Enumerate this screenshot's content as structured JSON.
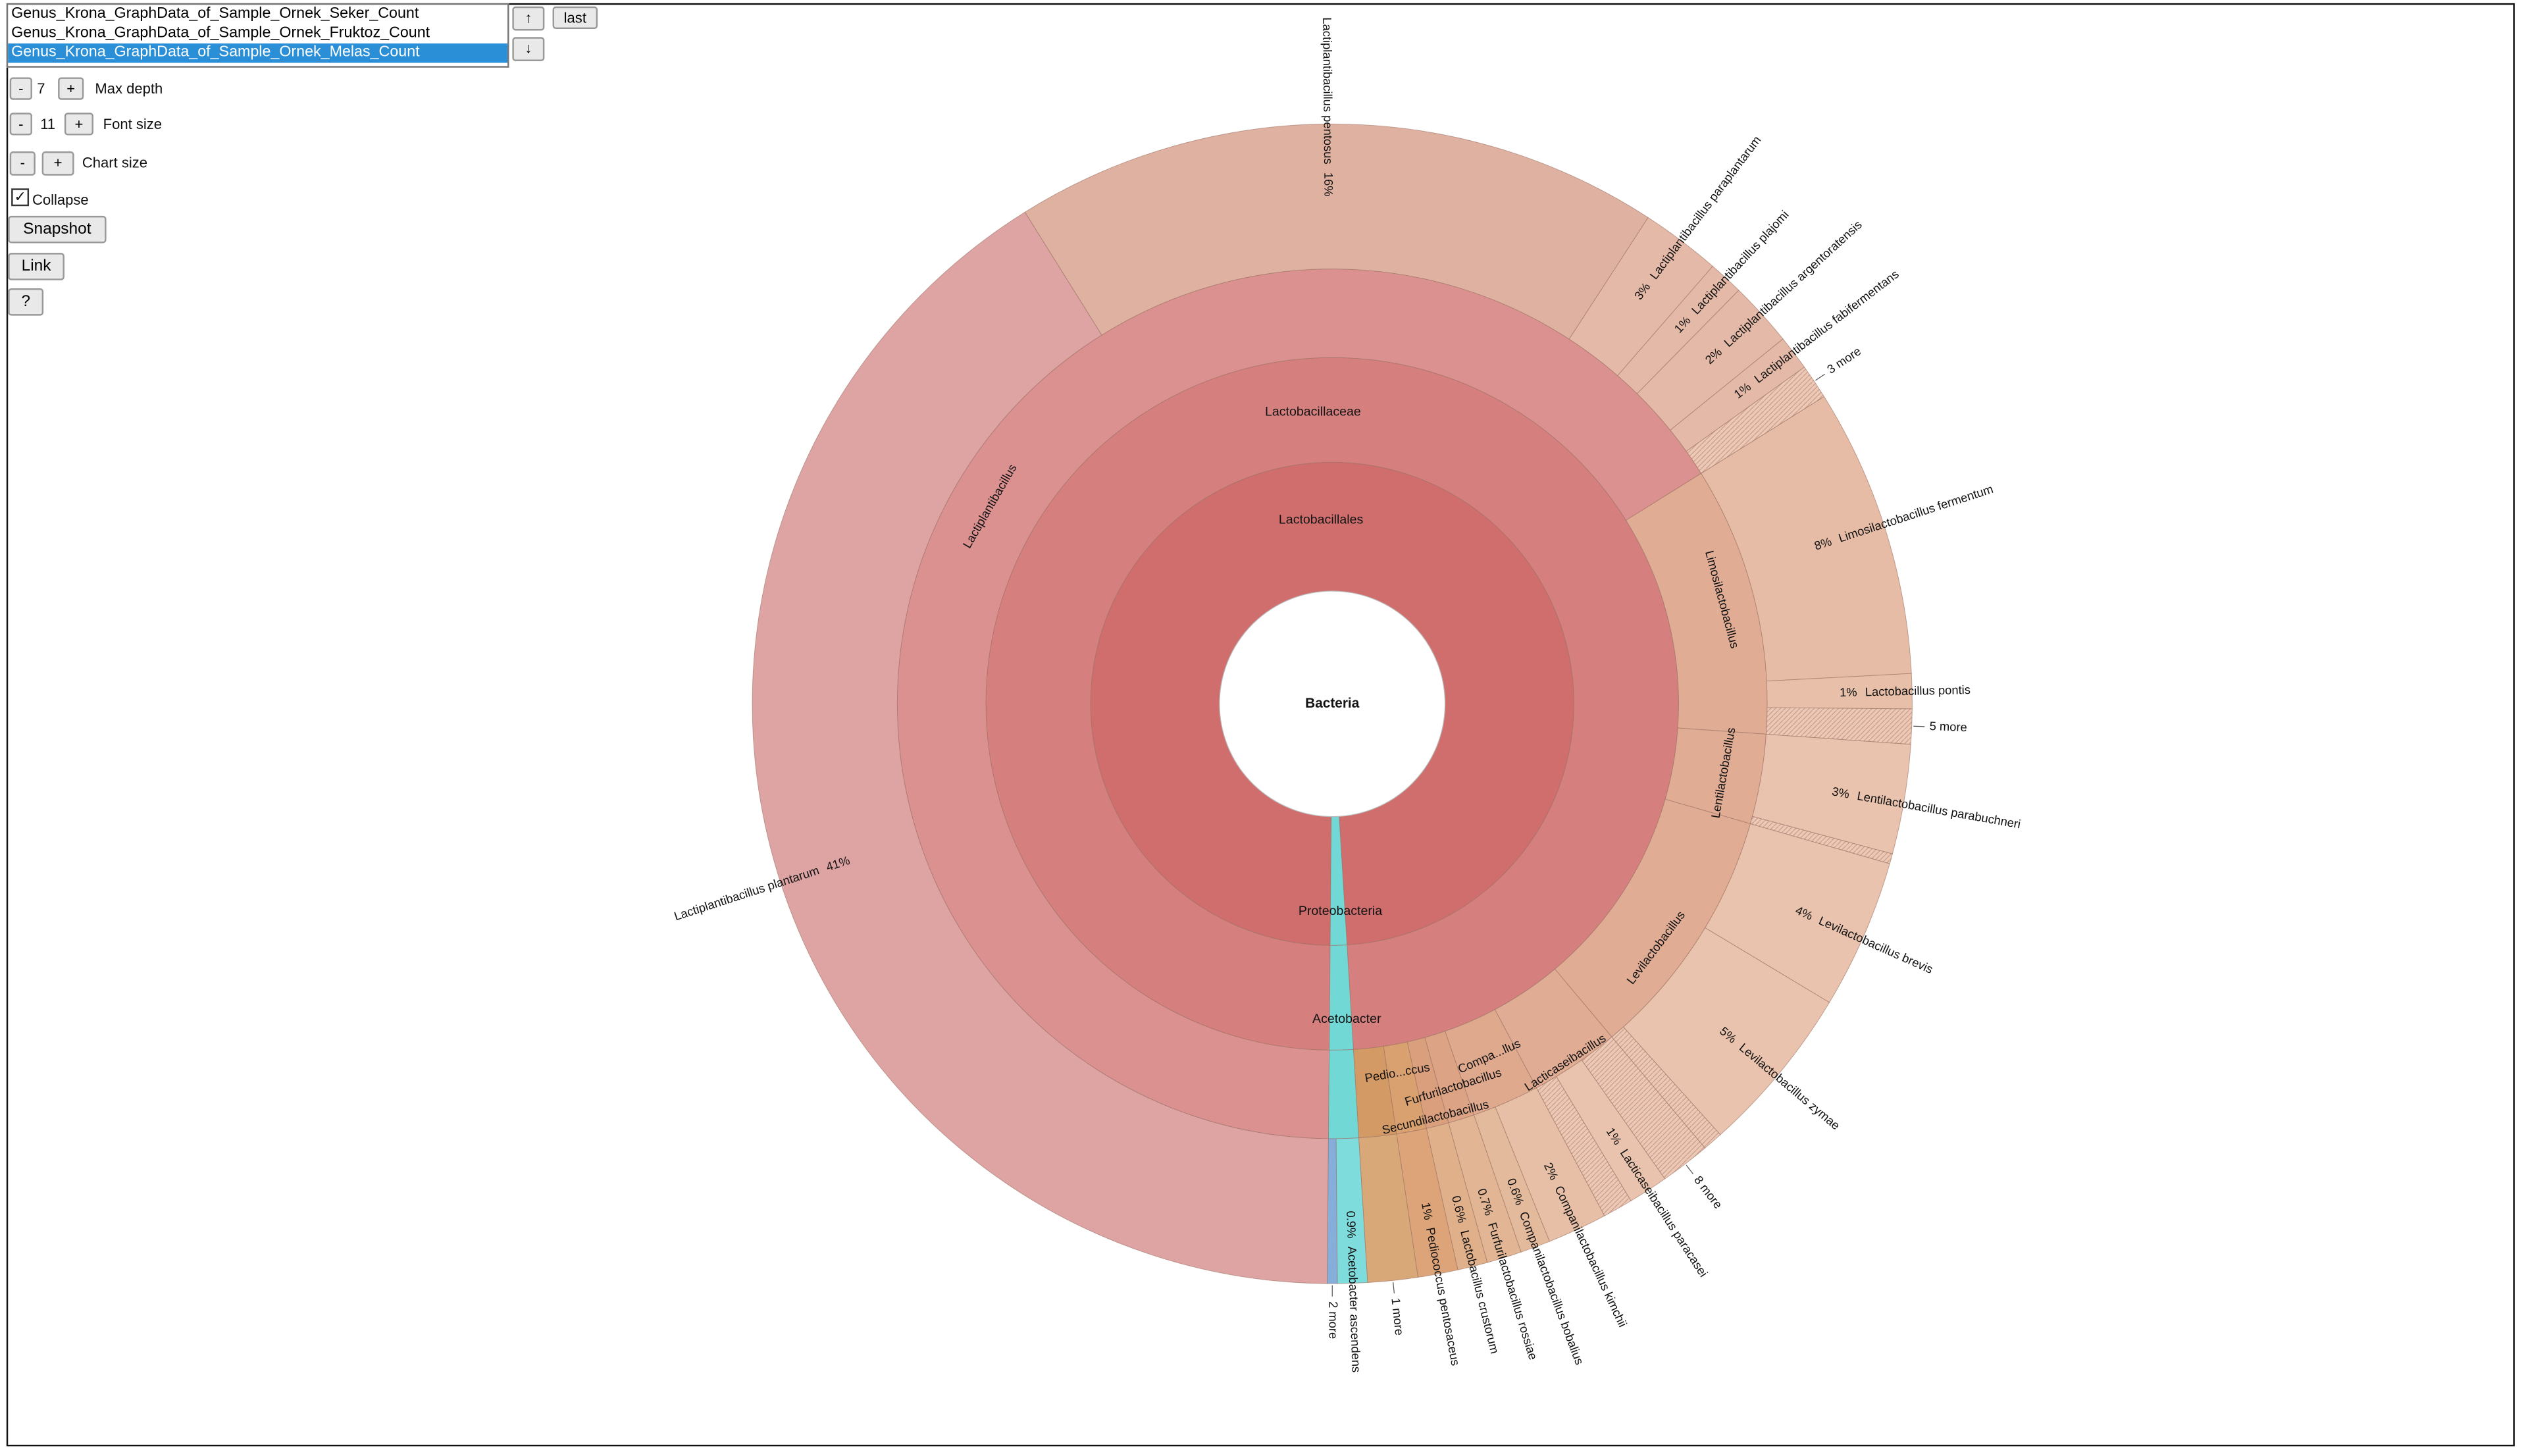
{
  "controls": {
    "datasets": [
      "Genus_Krona_GraphData_of_Sample_Ornek_Seker_Count",
      "Genus_Krona_GraphData_of_Sample_Ornek_Fruktoz_Count",
      "Genus_Krona_GraphData_of_Sample_Ornek_Melas_Count"
    ],
    "up": "↑",
    "down": "↓",
    "last": "last",
    "minus": "-",
    "plus": "+",
    "max_depth": "7",
    "max_depth_label": "Max depth",
    "font_size": "11",
    "font_size_label": "Font size",
    "chart_size_label": "Chart size",
    "collapse": "Collapse",
    "snapshot": "Snapshot",
    "link": "Link",
    "help": "?"
  },
  "chart": {
    "root": "Bacteria",
    "ring1": [
      "Lactobacillales",
      "Proteobacteria"
    ],
    "ring2": [
      "Lactobacillaceae",
      "Acetobacter"
    ],
    "genera": [
      "Lactiplantibacillus",
      "Limosilactobacillus",
      "Lentilactobacillus",
      "Levilactobacillus",
      "Lacticaseibacillus",
      "Compa...llus",
      "Furfurilactobacillus",
      "Secundilactobacillus",
      "Pedio...ccus"
    ],
    "species": [
      {
        "pct": "41%",
        "name": "Lactiplantibacillus plantarum"
      },
      {
        "pct": "16%",
        "name": "Lactiplantibacillus pentosus"
      },
      {
        "pct": "3%",
        "name": "Lactiplantibacillus paraplantarum"
      },
      {
        "pct": "1%",
        "name": "Lactiplantibacillus plajomi"
      },
      {
        "pct": "2%",
        "name": "Lactiplantibacillus argentoratensis"
      },
      {
        "pct": "1%",
        "name": "Lactiplantibacillus fabifermentans"
      },
      {
        "pct": "8%",
        "name": "Limosilactobacillus fermentum"
      },
      {
        "pct": "1%",
        "name": "Lactobacillus pontis"
      },
      {
        "pct": "3%",
        "name": "Lentilactobacillus parabuchneri"
      },
      {
        "pct": "4%",
        "name": "Levilactobacillus brevis"
      },
      {
        "pct": "5%",
        "name": "Levilactobacillus zymae"
      },
      {
        "pct": "1%",
        "name": "Lacticaseibacillus paracasei"
      },
      {
        "pct": "2%",
        "name": "Companilactobacillus kimchii"
      },
      {
        "pct": "0.6%",
        "name": "Companilactobacillus bobalius"
      },
      {
        "pct": "0.7%",
        "name": "Furfurilactobacillus rossiae"
      },
      {
        "pct": "0.6%",
        "name": "Lactobacillus crustorum"
      },
      {
        "pct": "1%",
        "name": "Pediococcus pentosaceus"
      },
      {
        "pct": "0.9%",
        "name": "Acetobacter ascendens"
      }
    ],
    "more": [
      "3 more",
      "5 more",
      "8 more",
      "1 more",
      "2 more"
    ]
  }
}
